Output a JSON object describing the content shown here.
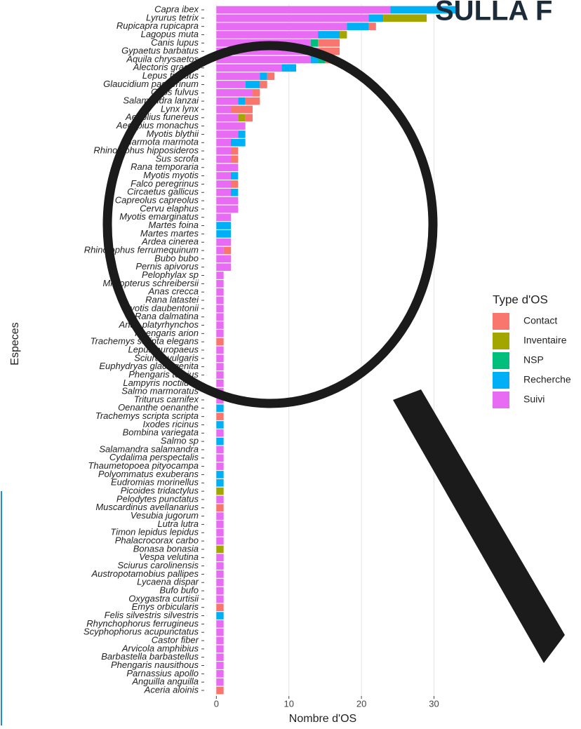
{
  "chart_data": {
    "type": "stacked-bar-horizontal",
    "title": "SULLA F",
    "x_label": "Nombre d'OS",
    "y_label": "Especes",
    "legend_title": "Type d'OS",
    "xlim": [
      -1,
      34.5
    ],
    "xticks": [
      0,
      10,
      20,
      30
    ],
    "grid": true,
    "legend": "right",
    "categories": [
      "Capra ibex",
      "Lyrurus tetrix",
      "Rupicapra rupicapra",
      "Lagopus muta",
      "Canis lupus",
      "Gypaetus barbatus",
      "Aquila chrysaetos",
      "Alectoris graeca",
      "Lepus timidus",
      "Glaucidium passerinum",
      "Gyps fulvus",
      "Salamandra lanzai",
      "Lynx lynx",
      "Aegolius funereus",
      "Aegypius monachus",
      "Myotis blythii",
      "Marmota marmota",
      "Rhinolophus hipposideros",
      "Sus scrofa",
      "Rana temporaria",
      "Myotis myotis",
      "Falco peregrinus",
      "Circaetus gallicus",
      "Capreolus capreolus",
      "Cervu elaphus",
      "Myotis emarginatus",
      "Martes foina",
      "Martes martes",
      "Ardea cinerea",
      "Rhinolophus ferrumequinum",
      "Bubo bubo",
      "Pernis apivorus",
      "Pelophylax sp",
      "Miniopterus schreibersii",
      "Anas crecca",
      "Rana latastei",
      "Myotis daubentonii",
      "Rana dalmatina",
      "Anas platyrhynchos",
      "Phengaris arion",
      "Trachemys scripta elegans",
      "Lepus europaeus",
      "Sciurus vulgaris",
      "Euphydryas glaciegenita",
      "Phengaris teleius",
      "Lampyris noctiluca",
      "Salmo marmoratus",
      "Triturus carnifex",
      "Oenanthe oenanthe",
      "Trachemys scripta scripta",
      "Ixodes ricinus",
      "Bombina variegata",
      "Salmo sp",
      "Salamandra salamandra",
      "Cydalima perspectalis",
      "Thaumetopoea pityocampa",
      "Polyommatus exuberans",
      "Eudromias morinellus",
      "Picoides tridactylus",
      "Pelodytes punctatus",
      "Muscardinus avellanarius",
      "Vesubia jugorum",
      "Lutra lutra",
      "Timon lepidus lepidus",
      "Phalacrocorax carbo",
      "Bonasa bonasia",
      "Vespa velutina",
      "Sciurus carolinensis",
      "Austropotamobius pallipes",
      "Lycaena dispar",
      "Bufo bufo",
      "Oxygastra curtisii",
      "Emys orbicularis",
      "Felis silvestris silvestris",
      "Rhynchophorus ferrugineus",
      "Scyphophorus acupunctatus",
      "Castor fiber",
      "Arvicola amphibius",
      "Barbastella barbastellus",
      "Phengaris nausithous",
      "Parnassius apollo",
      "Anguilla anguilla",
      "Aceria aloinis"
    ],
    "series": [
      {
        "name": "Contact",
        "color": "#F8766D",
        "values": [
          0,
          0,
          1,
          0,
          3,
          3,
          1,
          0,
          1,
          1,
          1,
          2,
          3,
          1,
          0,
          0,
          0,
          1,
          1,
          0,
          0,
          1,
          0,
          0,
          0,
          0,
          0,
          0,
          0,
          1,
          0,
          0,
          0,
          0,
          0,
          0,
          0,
          0,
          0,
          0,
          1,
          0,
          0,
          0,
          0,
          0,
          0,
          0,
          0,
          1,
          0,
          0,
          0,
          0,
          0,
          0,
          0,
          0,
          0,
          0,
          1,
          0,
          0,
          0,
          0,
          0,
          0,
          0,
          0,
          0,
          0,
          0,
          1,
          0,
          0,
          0,
          0,
          0,
          0,
          0,
          0,
          0,
          1
        ]
      },
      {
        "name": "Inventaire",
        "color": "#A3A500",
        "values": [
          0,
          6,
          0,
          1,
          0,
          0,
          0,
          0,
          0,
          0,
          0,
          0,
          0,
          1,
          0,
          0,
          0,
          0,
          0,
          0,
          0,
          0,
          0,
          0,
          0,
          0,
          0,
          0,
          0,
          0,
          0,
          0,
          0,
          0,
          0,
          0,
          0,
          0,
          0,
          0,
          0,
          0,
          0,
          0,
          0,
          0,
          0,
          0,
          0,
          0,
          0,
          0,
          0,
          0,
          0,
          0,
          0,
          0,
          1,
          0,
          0,
          0,
          0,
          0,
          0,
          1,
          0,
          0,
          0,
          0,
          0,
          0,
          0,
          0,
          0,
          0,
          0,
          0,
          0,
          0,
          0,
          0,
          0
        ]
      },
      {
        "name": "NSP",
        "color": "#00BF7D",
        "values": [
          0,
          0,
          0,
          0,
          1,
          0,
          1,
          0,
          0,
          0,
          0,
          0,
          0,
          0,
          0,
          0,
          0,
          0,
          0,
          0,
          0,
          0,
          0,
          0,
          0,
          0,
          0,
          0,
          0,
          0,
          0,
          0,
          0,
          0,
          0,
          0,
          0,
          0,
          0,
          0,
          0,
          0,
          0,
          0,
          0,
          0,
          0,
          0,
          0,
          0,
          0,
          0,
          0,
          0,
          0,
          0,
          0,
          0,
          0,
          0,
          0,
          0,
          0,
          0,
          0,
          0,
          0,
          0,
          0,
          0,
          0,
          0,
          0,
          0,
          0,
          0,
          0,
          0,
          0,
          0,
          0,
          0,
          0
        ]
      },
      {
        "name": "Recherche",
        "color": "#00B0F6",
        "values": [
          9,
          2,
          3,
          3,
          0,
          0,
          1,
          2,
          1,
          2,
          0,
          1,
          0,
          0,
          0,
          1,
          2,
          0,
          0,
          0,
          1,
          0,
          1,
          0,
          0,
          0,
          2,
          2,
          0,
          0,
          0,
          0,
          0,
          0,
          0,
          0,
          0,
          0,
          0,
          0,
          0,
          0,
          0,
          0,
          0,
          0,
          0,
          0,
          1,
          0,
          1,
          0,
          1,
          0,
          0,
          0,
          1,
          1,
          0,
          0,
          0,
          0,
          0,
          0,
          0,
          0,
          0,
          0,
          0,
          0,
          0,
          0,
          0,
          1,
          0,
          0,
          0,
          0,
          0,
          0,
          0,
          0,
          0
        ]
      },
      {
        "name": "Suivi",
        "color": "#E76BF3",
        "values": [
          24,
          21,
          18,
          14,
          13,
          14,
          13,
          9,
          6,
          4,
          5,
          3,
          2,
          3,
          4,
          3,
          2,
          2,
          2,
          3,
          2,
          2,
          2,
          3,
          3,
          2,
          0,
          0,
          2,
          1,
          2,
          2,
          1,
          1,
          1,
          1,
          1,
          1,
          1,
          1,
          0,
          1,
          1,
          1,
          1,
          1,
          1,
          1,
          0,
          0,
          0,
          1,
          0,
          1,
          1,
          1,
          0,
          0,
          0,
          1,
          0,
          1,
          1,
          1,
          1,
          0,
          1,
          1,
          1,
          1,
          1,
          1,
          0,
          0,
          1,
          1,
          1,
          1,
          1,
          1,
          1,
          1,
          0
        ]
      }
    ]
  }
}
